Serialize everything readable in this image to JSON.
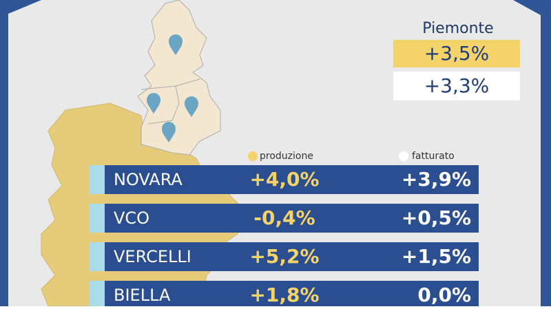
{
  "region": {
    "name": "Piemonte",
    "produzione": "+3,5%",
    "fatturato": "+3,3%"
  },
  "legend": {
    "produzione": "produzione",
    "fatturato": "fatturato"
  },
  "table": {
    "rows": [
      [
        "NOVARA",
        "+4,0%",
        "+3,9%"
      ],
      [
        "VCO",
        "-0,4%",
        "+0,5%"
      ],
      [
        "VERCELLI",
        "+5,2%",
        "+1,5%"
      ],
      [
        "BIELLA",
        "+1,8%",
        "0,0%"
      ]
    ]
  }
}
